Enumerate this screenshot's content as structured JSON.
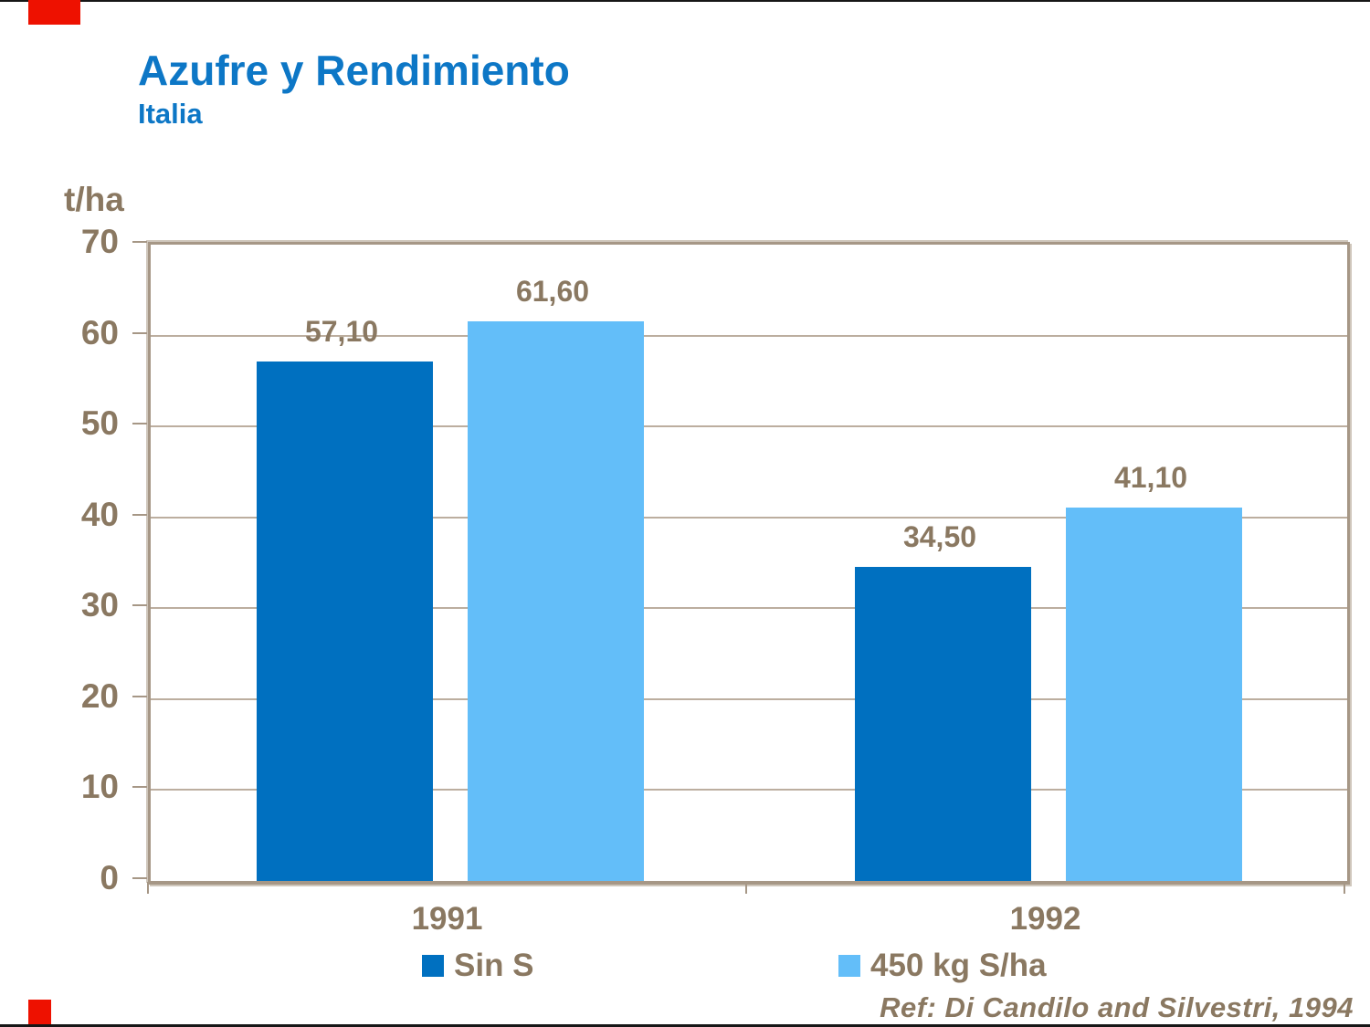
{
  "slide": {
    "title": "Azufre y Rendimiento",
    "subtitle": "Italia",
    "reference": "Ref: Di Candilo and Silvestri, 1994",
    "accent_color": "#ee1100",
    "title_color": "#0d77c6",
    "text_color": "#8a7861"
  },
  "chart_data": {
    "type": "bar",
    "title": "Azufre y Rendimiento",
    "subtitle": "Italia",
    "ylabel": "t/ha",
    "xlabel": "",
    "categories": [
      "1991",
      "1992"
    ],
    "series": [
      {
        "name": "Sin S",
        "color": "#0070c0",
        "values": [
          57.1,
          34.5
        ],
        "value_labels": [
          "57,10",
          "34,50"
        ]
      },
      {
        "name": "450 kg S/ha",
        "color": "#63bef9",
        "values": [
          61.6,
          41.1
        ],
        "value_labels": [
          "61,60",
          "41,10"
        ]
      }
    ],
    "ylim": [
      0,
      70
    ],
    "yticks": [
      0,
      10,
      20,
      30,
      40,
      50,
      60,
      70
    ],
    "grid": true,
    "legend_position": "bottom",
    "annotation": "Ref: Di Candilo and Silvestri, 1994",
    "frame_color": "#a69786",
    "gridline_color": "#bcae9f"
  }
}
